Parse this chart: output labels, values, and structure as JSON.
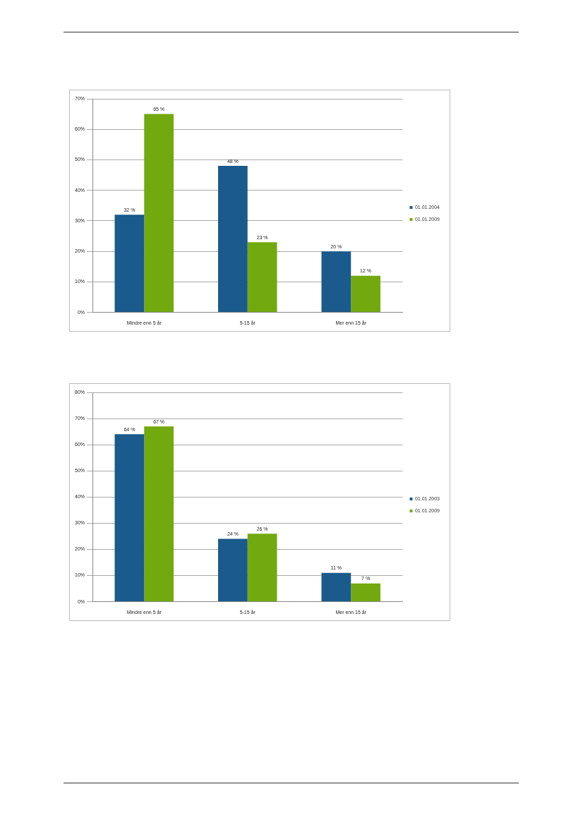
{
  "chart_data": [
    {
      "type": "bar",
      "categories": [
        "Mindre enn 5 år",
        "5-15 år",
        "Mer enn 15 år"
      ],
      "series": [
        {
          "name": "01.01.2004",
          "color": "#1a5a8c",
          "values": [
            32,
            48,
            20
          ],
          "value_labels": [
            "32 %",
            "48 %",
            "20 %"
          ]
        },
        {
          "name": "01.01.2009",
          "color": "#72a90f",
          "values": [
            65,
            23,
            12
          ],
          "value_labels": [
            "65 %",
            "23 %",
            "12 %"
          ]
        }
      ],
      "ylim": [
        0,
        70
      ],
      "yticks": [
        {
          "value": 0,
          "label": "0%"
        },
        {
          "value": 10,
          "label": "10%"
        },
        {
          "value": 20,
          "label": "20%"
        },
        {
          "value": 30,
          "label": "30%"
        },
        {
          "value": 40,
          "label": "40%"
        },
        {
          "value": 50,
          "label": "50%"
        },
        {
          "value": 60,
          "label": "60%"
        },
        {
          "value": 70,
          "label": "70%"
        }
      ],
      "grid": "y",
      "legend": "right"
    },
    {
      "type": "bar",
      "categories": [
        "Mindre enn 5 år",
        "5-15 år",
        "Mer enn 15 år"
      ],
      "series": [
        {
          "name": "01.01.2003",
          "color": "#1a5a8c",
          "values": [
            64,
            24,
            11
          ],
          "value_labels": [
            "64 %",
            "24 %",
            "11 %"
          ]
        },
        {
          "name": "01.01.2009",
          "color": "#72a90f",
          "values": [
            67,
            26,
            7
          ],
          "value_labels": [
            "67 %",
            "26 %",
            "7 %"
          ]
        }
      ],
      "ylim": [
        0,
        80
      ],
      "yticks": [
        {
          "value": 0,
          "label": "0%"
        },
        {
          "value": 10,
          "label": "10%"
        },
        {
          "value": 20,
          "label": "20%"
        },
        {
          "value": 30,
          "label": "30%"
        },
        {
          "value": 40,
          "label": "40%"
        },
        {
          "value": 50,
          "label": "50%"
        },
        {
          "value": 60,
          "label": "60%"
        },
        {
          "value": 70,
          "label": "70%"
        },
        {
          "value": 80,
          "label": "80%"
        }
      ],
      "grid": "y",
      "legend": "right"
    }
  ]
}
